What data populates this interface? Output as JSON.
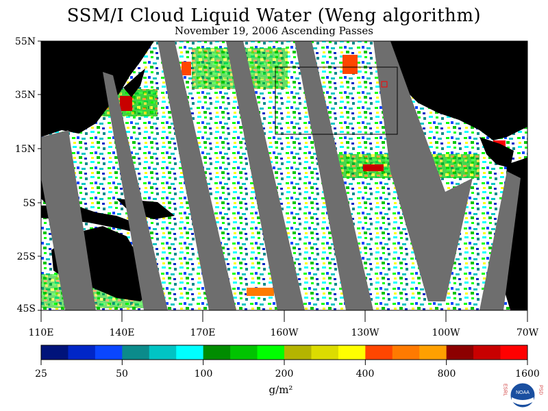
{
  "header": {
    "title": "SSM/I Cloud Liquid Water (Weng algorithm)",
    "subtitle": "November 19, 2006  Ascending Passes"
  },
  "map": {
    "lat_labels": [
      "55N",
      "35N",
      "15N",
      "5S",
      "25S",
      "45S"
    ],
    "lon_labels": [
      "110E",
      "140E",
      "170E",
      "160W",
      "130W",
      "100W",
      "70W"
    ],
    "colors": {
      "land": "#000000",
      "missing_swath": "#6e6e6e",
      "no_cloud": "#ffffff",
      "inset_box": "#000000",
      "marker": "#ff0000"
    }
  },
  "colorbar": {
    "ticks": [
      "25",
      "50",
      "100",
      "200",
      "400",
      "800",
      "1600"
    ],
    "unit": "g/m²",
    "colors": [
      "#00137a",
      "#0026c7",
      "#0a46ff",
      "#0b8b8b",
      "#00c4c4",
      "#00ffff",
      "#008c00",
      "#00c400",
      "#00ff00",
      "#b4b400",
      "#dcdc00",
      "#ffff00",
      "#ff4600",
      "#ff7a00",
      "#ffa000",
      "#8c0000",
      "#c80000",
      "#ff0000"
    ]
  },
  "logo": {
    "left_letters": "ESRL",
    "right_letters": "PSD",
    "center_text": "NOAA"
  }
}
